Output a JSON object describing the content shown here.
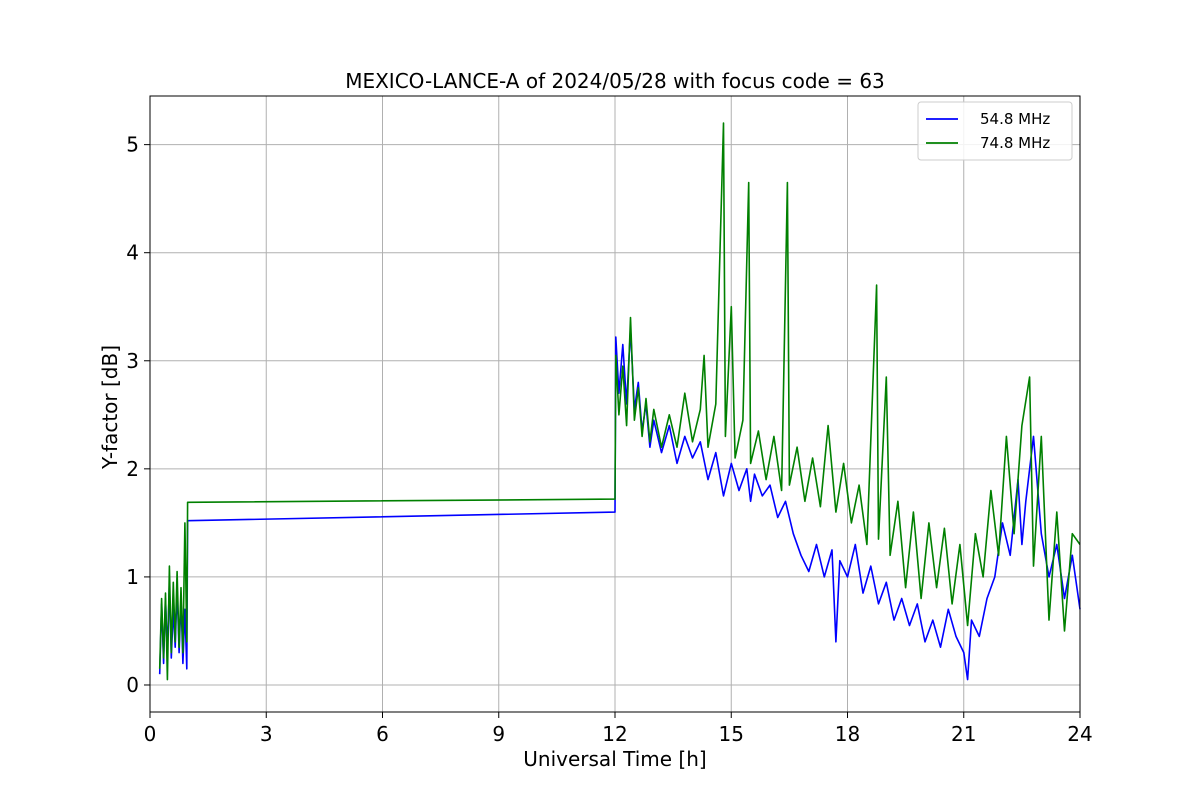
{
  "chart_data": {
    "type": "line",
    "title": "MEXICO-LANCE-A of 2024/05/28 with focus code = 63",
    "xlabel": "Universal Time [h]",
    "ylabel": "Y-factor [dB]",
    "xlim": [
      0,
      24
    ],
    "ylim": [
      -0.25,
      5.45
    ],
    "xticks": [
      0,
      3,
      6,
      9,
      12,
      15,
      18,
      21,
      24
    ],
    "yticks": [
      0,
      1,
      2,
      3,
      4,
      5
    ],
    "grid": true,
    "legend_position": "top-right",
    "series": [
      {
        "name": "54.8 MHz",
        "color": "#0000ff",
        "points": [
          [
            0.25,
            0.1
          ],
          [
            0.3,
            0.75
          ],
          [
            0.35,
            0.2
          ],
          [
            0.4,
            0.8
          ],
          [
            0.45,
            0.3
          ],
          [
            0.5,
            0.95
          ],
          [
            0.55,
            0.25
          ],
          [
            0.6,
            0.7
          ],
          [
            0.65,
            0.35
          ],
          [
            0.7,
            0.9
          ],
          [
            0.75,
            0.3
          ],
          [
            0.8,
            0.8
          ],
          [
            0.85,
            0.2
          ],
          [
            0.9,
            0.7
          ],
          [
            0.95,
            0.15
          ],
          [
            0.97,
            1.52
          ],
          [
            12.0,
            1.6
          ],
          [
            12.02,
            3.22
          ],
          [
            12.1,
            2.7
          ],
          [
            12.2,
            3.15
          ],
          [
            12.3,
            2.6
          ],
          [
            12.4,
            3.3
          ],
          [
            12.5,
            2.55
          ],
          [
            12.6,
            2.8
          ],
          [
            12.7,
            2.35
          ],
          [
            12.8,
            2.6
          ],
          [
            12.9,
            2.2
          ],
          [
            13.0,
            2.45
          ],
          [
            13.2,
            2.15
          ],
          [
            13.4,
            2.4
          ],
          [
            13.6,
            2.05
          ],
          [
            13.8,
            2.3
          ],
          [
            14.0,
            2.1
          ],
          [
            14.2,
            2.25
          ],
          [
            14.4,
            1.9
          ],
          [
            14.6,
            2.15
          ],
          [
            14.8,
            1.75
          ],
          [
            15.0,
            2.05
          ],
          [
            15.2,
            1.8
          ],
          [
            15.4,
            2.0
          ],
          [
            15.5,
            1.7
          ],
          [
            15.6,
            1.95
          ],
          [
            15.8,
            1.75
          ],
          [
            16.0,
            1.85
          ],
          [
            16.2,
            1.55
          ],
          [
            16.4,
            1.7
          ],
          [
            16.6,
            1.4
          ],
          [
            16.8,
            1.2
          ],
          [
            17.0,
            1.05
          ],
          [
            17.2,
            1.3
          ],
          [
            17.4,
            1.0
          ],
          [
            17.6,
            1.25
          ],
          [
            17.7,
            0.4
          ],
          [
            17.8,
            1.15
          ],
          [
            18.0,
            1.0
          ],
          [
            18.2,
            1.3
          ],
          [
            18.4,
            0.85
          ],
          [
            18.6,
            1.1
          ],
          [
            18.8,
            0.75
          ],
          [
            19.0,
            0.95
          ],
          [
            19.2,
            0.6
          ],
          [
            19.4,
            0.8
          ],
          [
            19.6,
            0.55
          ],
          [
            19.8,
            0.75
          ],
          [
            20.0,
            0.4
          ],
          [
            20.2,
            0.6
          ],
          [
            20.4,
            0.35
          ],
          [
            20.6,
            0.7
          ],
          [
            20.8,
            0.45
          ],
          [
            21.0,
            0.3
          ],
          [
            21.1,
            0.05
          ],
          [
            21.2,
            0.6
          ],
          [
            21.4,
            0.45
          ],
          [
            21.6,
            0.8
          ],
          [
            21.8,
            1.0
          ],
          [
            22.0,
            1.5
          ],
          [
            22.2,
            1.2
          ],
          [
            22.4,
            1.9
          ],
          [
            22.5,
            1.3
          ],
          [
            22.6,
            1.7
          ],
          [
            22.8,
            2.3
          ],
          [
            23.0,
            1.4
          ],
          [
            23.2,
            1.0
          ],
          [
            23.4,
            1.3
          ],
          [
            23.6,
            0.8
          ],
          [
            23.8,
            1.2
          ],
          [
            24.0,
            0.7
          ]
        ]
      },
      {
        "name": "74.8 MHz",
        "color": "#008000",
        "points": [
          [
            0.25,
            0.15
          ],
          [
            0.3,
            0.8
          ],
          [
            0.35,
            0.25
          ],
          [
            0.4,
            0.85
          ],
          [
            0.45,
            0.05
          ],
          [
            0.5,
            1.1
          ],
          [
            0.55,
            0.3
          ],
          [
            0.6,
            0.95
          ],
          [
            0.65,
            0.4
          ],
          [
            0.7,
            1.05
          ],
          [
            0.75,
            0.35
          ],
          [
            0.8,
            0.9
          ],
          [
            0.85,
            0.3
          ],
          [
            0.9,
            1.5
          ],
          [
            0.95,
            0.4
          ],
          [
            0.97,
            1.69
          ],
          [
            12.0,
            1.72
          ],
          [
            12.02,
            3.05
          ],
          [
            12.1,
            2.5
          ],
          [
            12.2,
            2.95
          ],
          [
            12.3,
            2.4
          ],
          [
            12.4,
            3.4
          ],
          [
            12.5,
            2.45
          ],
          [
            12.6,
            2.75
          ],
          [
            12.7,
            2.3
          ],
          [
            12.8,
            2.65
          ],
          [
            12.9,
            2.25
          ],
          [
            13.0,
            2.55
          ],
          [
            13.2,
            2.2
          ],
          [
            13.4,
            2.5
          ],
          [
            13.6,
            2.2
          ],
          [
            13.8,
            2.7
          ],
          [
            14.0,
            2.25
          ],
          [
            14.2,
            2.55
          ],
          [
            14.3,
            3.05
          ],
          [
            14.4,
            2.2
          ],
          [
            14.6,
            2.6
          ],
          [
            14.8,
            5.2
          ],
          [
            14.85,
            2.3
          ],
          [
            15.0,
            3.5
          ],
          [
            15.1,
            2.1
          ],
          [
            15.3,
            2.45
          ],
          [
            15.45,
            4.65
          ],
          [
            15.5,
            2.05
          ],
          [
            15.7,
            2.35
          ],
          [
            15.9,
            1.9
          ],
          [
            16.1,
            2.3
          ],
          [
            16.3,
            1.8
          ],
          [
            16.45,
            4.65
          ],
          [
            16.5,
            1.85
          ],
          [
            16.7,
            2.2
          ],
          [
            16.9,
            1.7
          ],
          [
            17.1,
            2.1
          ],
          [
            17.3,
            1.65
          ],
          [
            17.5,
            2.4
          ],
          [
            17.7,
            1.6
          ],
          [
            17.9,
            2.05
          ],
          [
            18.1,
            1.5
          ],
          [
            18.3,
            1.85
          ],
          [
            18.5,
            1.3
          ],
          [
            18.75,
            3.7
          ],
          [
            18.8,
            1.35
          ],
          [
            19.0,
            2.85
          ],
          [
            19.1,
            1.2
          ],
          [
            19.3,
            1.7
          ],
          [
            19.5,
            0.9
          ],
          [
            19.7,
            1.6
          ],
          [
            19.9,
            0.8
          ],
          [
            20.1,
            1.5
          ],
          [
            20.3,
            0.9
          ],
          [
            20.5,
            1.45
          ],
          [
            20.7,
            0.75
          ],
          [
            20.9,
            1.3
          ],
          [
            21.1,
            0.55
          ],
          [
            21.3,
            1.4
          ],
          [
            21.5,
            1.0
          ],
          [
            21.7,
            1.8
          ],
          [
            21.9,
            1.2
          ],
          [
            22.1,
            2.3
          ],
          [
            22.3,
            1.4
          ],
          [
            22.5,
            2.4
          ],
          [
            22.7,
            2.85
          ],
          [
            22.8,
            1.1
          ],
          [
            23.0,
            2.3
          ],
          [
            23.2,
            0.6
          ],
          [
            23.4,
            1.6
          ],
          [
            23.6,
            0.5
          ],
          [
            23.8,
            1.4
          ],
          [
            24.0,
            1.3
          ]
        ]
      }
    ]
  }
}
